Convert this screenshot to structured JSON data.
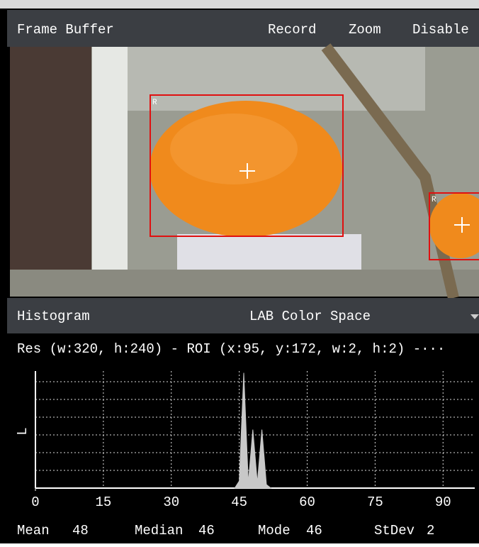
{
  "toolbar": {
    "title": "Frame Buffer",
    "buttons": [
      "Record",
      "Zoom",
      "Disable"
    ]
  },
  "frame": {
    "roi_labels": [
      "R",
      "R"
    ]
  },
  "histogram_bar": {
    "title": "Histogram",
    "color_space": "LAB Color Space"
  },
  "info": "Res (w:320, h:240) - ROI (x:95, y:172, w:2, h:2) -···",
  "chart_data": {
    "type": "area",
    "y_label": "L",
    "x": [
      44,
      45,
      46,
      47,
      48,
      49,
      50,
      51,
      52
    ],
    "values": [
      0,
      0.4,
      6.5,
      0.3,
      3.3,
      0.3,
      3.3,
      0.2,
      0
    ],
    "color": "#c8c8c8",
    "xlim": [
      0,
      97
    ],
    "xticks": [
      0,
      15,
      30,
      45,
      60,
      75,
      90
    ],
    "ylim": [
      0,
      6.6
    ],
    "yticks": [
      1,
      2,
      3,
      4,
      5,
      6
    ],
    "grid": true
  },
  "stats": {
    "labels": [
      "Mean",
      "Median",
      "Mode",
      "StDev"
    ],
    "values": [
      48,
      46,
      46,
      2
    ]
  }
}
